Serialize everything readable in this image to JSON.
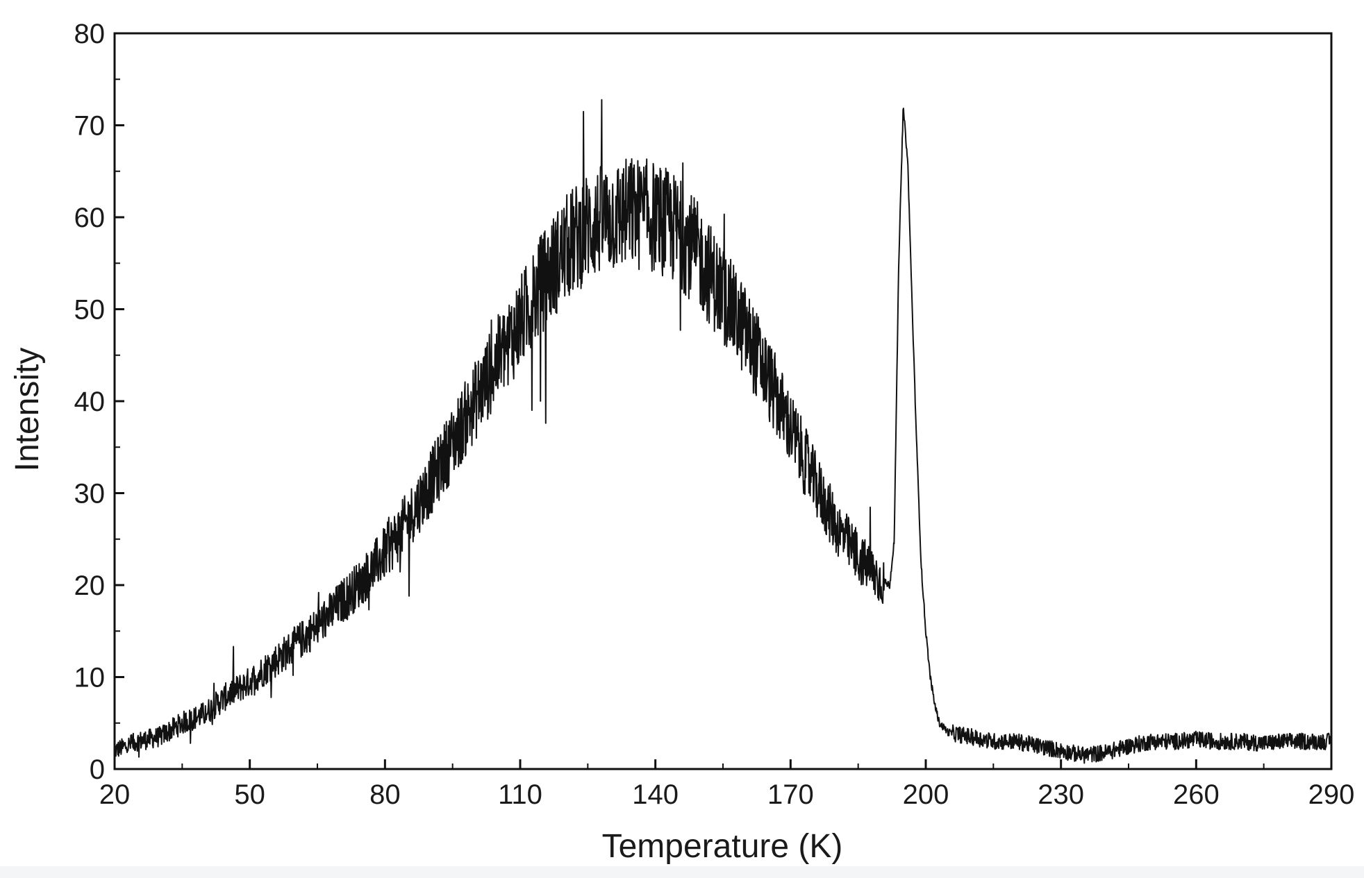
{
  "chart_data": {
    "type": "line",
    "title": "",
    "xlabel": "Temperature (K)",
    "ylabel": "Intensity",
    "xlim": [
      20,
      290
    ],
    "ylim": [
      0,
      80
    ],
    "x_ticks": [
      "20",
      "50",
      "80",
      "110",
      "140",
      "170",
      "200",
      "230",
      "260",
      "290"
    ],
    "y_ticks": [
      "0",
      "10",
      "20",
      "30",
      "40",
      "50",
      "60",
      "70",
      "80"
    ],
    "grid": false,
    "legend": "none",
    "line_color": "#111111",
    "series": [
      {
        "x": [
          20,
          25,
          30,
          35,
          40,
          45,
          50,
          55,
          60,
          65,
          70,
          75,
          80,
          85,
          90,
          95,
          100,
          105,
          110,
          115,
          120,
          125,
          130,
          135,
          140,
          145,
          150,
          155,
          160,
          165,
          170,
          175,
          180,
          185,
          190,
          192,
          193,
          194,
          195,
          196,
          197,
          198,
          199,
          200,
          201,
          202,
          203,
          205,
          210,
          215,
          220,
          225,
          230,
          235,
          240,
          245,
          250,
          255,
          260,
          265,
          270,
          275,
          280,
          285,
          290
        ],
        "y": [
          2,
          3,
          3.5,
          5,
          6,
          8,
          9.5,
          11.5,
          13.5,
          15.5,
          18,
          20.5,
          23.5,
          27,
          31,
          35.5,
          40,
          44.5,
          48.5,
          53,
          56.5,
          59,
          60,
          60.5,
          60,
          58.5,
          55.5,
          51.5,
          47.5,
          42.5,
          37,
          31.5,
          26.5,
          23,
          20.5,
          20,
          25,
          55,
          72,
          66,
          50,
          35,
          22,
          15,
          10,
          7,
          5,
          4,
          3.5,
          3,
          3,
          2.5,
          2,
          1.5,
          1.8,
          2.5,
          3,
          3,
          3.2,
          3,
          3,
          2.8,
          3,
          3,
          3
        ]
      }
    ]
  }
}
